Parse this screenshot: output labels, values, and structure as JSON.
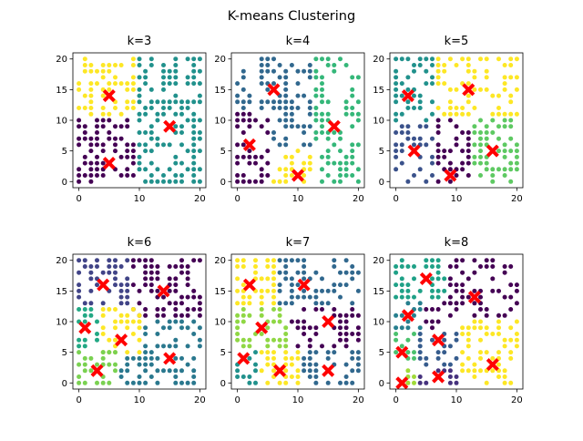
{
  "figure": {
    "title": "K-means Clustering"
  },
  "palette": {
    "2": [
      "#440154",
      "#fde725"
    ],
    "3": [
      "#440154",
      "#21918c",
      "#fde725"
    ],
    "4": [
      "#440154",
      "#31688e",
      "#35b779",
      "#fde725"
    ],
    "5": [
      "#440154",
      "#3b528b",
      "#21918c",
      "#5ec962",
      "#fde725"
    ],
    "6": [
      "#440154",
      "#414487",
      "#2a788e",
      "#22a884",
      "#7ad151",
      "#fde725"
    ],
    "7": [
      "#440154",
      "#443983",
      "#31688e",
      "#21918c",
      "#35b779",
      "#8fd744",
      "#fde725"
    ],
    "8": [
      "#440154",
      "#46327e",
      "#365c8d",
      "#277f8e",
      "#1fa187",
      "#4ac16d",
      "#a0da39",
      "#fde725"
    ]
  },
  "centroid_color": "#ff0000",
  "chart_data": [
    {
      "type": "scatter",
      "title": "k=3",
      "k": 3,
      "xticks": [
        0,
        10,
        20
      ],
      "yticks": [
        0,
        5,
        10,
        15,
        20
      ],
      "xlim": [
        -1,
        21
      ],
      "ylim": [
        -1,
        21
      ],
      "centroids": [
        [
          5,
          14
        ],
        [
          15,
          9
        ],
        [
          5,
          3
        ]
      ],
      "regions": [
        {
          "cluster": 2,
          "x": [
            0,
            9
          ],
          "y": [
            11,
            20
          ]
        },
        {
          "cluster": 1,
          "x": [
            10,
            20
          ],
          "y": [
            0,
            20
          ]
        },
        {
          "cluster": 0,
          "x": [
            0,
            9
          ],
          "y": [
            0,
            10
          ]
        }
      ]
    },
    {
      "type": "scatter",
      "title": "k=4",
      "k": 4,
      "xticks": [
        0,
        10,
        20
      ],
      "yticks": [
        0,
        5,
        10,
        15,
        20
      ],
      "xlim": [
        -1,
        21
      ],
      "ylim": [
        -1,
        21
      ],
      "centroids": [
        [
          6,
          15
        ],
        [
          16,
          9
        ],
        [
          2,
          6
        ],
        [
          10,
          1
        ]
      ],
      "regions": [
        {
          "cluster": 1,
          "x": [
            0,
            12
          ],
          "y": [
            12,
            20
          ]
        },
        {
          "cluster": 2,
          "x": [
            13,
            20
          ],
          "y": [
            0,
            20
          ]
        },
        {
          "cluster": 0,
          "x": [
            0,
            5
          ],
          "y": [
            0,
            11
          ]
        },
        {
          "cluster": 1,
          "x": [
            6,
            12
          ],
          "y": [
            6,
            11
          ]
        },
        {
          "cluster": 3,
          "x": [
            6,
            12
          ],
          "y": [
            0,
            5
          ]
        }
      ]
    },
    {
      "type": "scatter",
      "title": "k=5",
      "k": 5,
      "xticks": [
        0,
        10,
        20
      ],
      "yticks": [
        0,
        5,
        10,
        15,
        20
      ],
      "xlim": [
        -1,
        21
      ],
      "ylim": [
        -1,
        21
      ],
      "centroids": [
        [
          2,
          14
        ],
        [
          12,
          15
        ],
        [
          3,
          5
        ],
        [
          9,
          1
        ],
        [
          16,
          5
        ]
      ],
      "regions": [
        {
          "cluster": 2,
          "x": [
            0,
            6
          ],
          "y": [
            10,
            20
          ]
        },
        {
          "cluster": 4,
          "x": [
            7,
            20
          ],
          "y": [
            11,
            20
          ]
        },
        {
          "cluster": 1,
          "x": [
            0,
            6
          ],
          "y": [
            0,
            9
          ]
        },
        {
          "cluster": 0,
          "x": [
            7,
            12
          ],
          "y": [
            0,
            10
          ]
        },
        {
          "cluster": 3,
          "x": [
            13,
            20
          ],
          "y": [
            0,
            10
          ]
        }
      ]
    },
    {
      "type": "scatter",
      "title": "k=6",
      "k": 6,
      "xticks": [
        0,
        10,
        20
      ],
      "yticks": [
        0,
        5,
        10,
        15,
        20
      ],
      "xlim": [
        -1,
        21
      ],
      "ylim": [
        -1,
        21
      ],
      "centroids": [
        [
          4,
          16
        ],
        [
          14,
          15
        ],
        [
          1,
          9
        ],
        [
          7,
          7
        ],
        [
          3,
          2
        ],
        [
          15,
          4
        ]
      ],
      "regions": [
        {
          "cluster": 1,
          "x": [
            0,
            8
          ],
          "y": [
            13,
            20
          ]
        },
        {
          "cluster": 0,
          "x": [
            9,
            20
          ],
          "y": [
            11,
            20
          ]
        },
        {
          "cluster": 3,
          "x": [
            0,
            3
          ],
          "y": [
            6,
            12
          ]
        },
        {
          "cluster": 5,
          "x": [
            4,
            10
          ],
          "y": [
            5,
            12
          ]
        },
        {
          "cluster": 4,
          "x": [
            0,
            6
          ],
          "y": [
            0,
            5
          ]
        },
        {
          "cluster": 2,
          "x": [
            11,
            20
          ],
          "y": [
            0,
            10
          ]
        },
        {
          "cluster": 2,
          "x": [
            7,
            10
          ],
          "y": [
            0,
            4
          ]
        }
      ]
    },
    {
      "type": "scatter",
      "title": "k=7",
      "k": 7,
      "xticks": [
        0,
        10,
        20
      ],
      "yticks": [
        0,
        5,
        10,
        15,
        20
      ],
      "xlim": [
        -1,
        21
      ],
      "ylim": [
        -1,
        21
      ],
      "centroids": [
        [
          2,
          16
        ],
        [
          11,
          16
        ],
        [
          4,
          9
        ],
        [
          15,
          10
        ],
        [
          1,
          4
        ],
        [
          7,
          2
        ],
        [
          15,
          2
        ]
      ],
      "regions": [
        {
          "cluster": 6,
          "x": [
            0,
            6
          ],
          "y": [
            13,
            20
          ]
        },
        {
          "cluster": 2,
          "x": [
            7,
            20
          ],
          "y": [
            13,
            20
          ]
        },
        {
          "cluster": 5,
          "x": [
            0,
            8
          ],
          "y": [
            6,
            12
          ]
        },
        {
          "cluster": 0,
          "x": [
            9,
            20
          ],
          "y": [
            6,
            12
          ]
        },
        {
          "cluster": 3,
          "x": [
            0,
            3
          ],
          "y": [
            0,
            5
          ]
        },
        {
          "cluster": 6,
          "x": [
            4,
            10
          ],
          "y": [
            0,
            5
          ]
        },
        {
          "cluster": 2,
          "x": [
            11,
            20
          ],
          "y": [
            0,
            5
          ]
        }
      ]
    },
    {
      "type": "scatter",
      "title": "k=8",
      "k": 8,
      "xticks": [
        0,
        10,
        20
      ],
      "yticks": [
        0,
        5,
        10,
        15,
        20
      ],
      "xlim": [
        -1,
        21
      ],
      "ylim": [
        -1,
        21
      ],
      "centroids": [
        [
          5,
          17
        ],
        [
          13,
          14
        ],
        [
          2,
          11
        ],
        [
          7,
          7
        ],
        [
          1,
          5
        ],
        [
          16,
          3
        ],
        [
          7,
          1
        ],
        [
          1,
          0
        ]
      ],
      "regions": [
        {
          "cluster": 4,
          "x": [
            0,
            8
          ],
          "y": [
            14,
            20
          ]
        },
        {
          "cluster": 0,
          "x": [
            9,
            20
          ],
          "y": [
            11,
            20
          ]
        },
        {
          "cluster": 3,
          "x": [
            0,
            4
          ],
          "y": [
            9,
            13
          ]
        },
        {
          "cluster": 0,
          "x": [
            5,
            8
          ],
          "y": [
            9,
            13
          ]
        },
        {
          "cluster": 5,
          "x": [
            0,
            3
          ],
          "y": [
            3,
            8
          ]
        },
        {
          "cluster": 2,
          "x": [
            4,
            10
          ],
          "y": [
            3,
            8
          ]
        },
        {
          "cluster": 7,
          "x": [
            11,
            20
          ],
          "y": [
            0,
            10
          ]
        },
        {
          "cluster": 6,
          "x": [
            0,
            3
          ],
          "y": [
            0,
            2
          ]
        },
        {
          "cluster": 1,
          "x": [
            4,
            10
          ],
          "y": [
            0,
            2
          ]
        }
      ]
    }
  ]
}
